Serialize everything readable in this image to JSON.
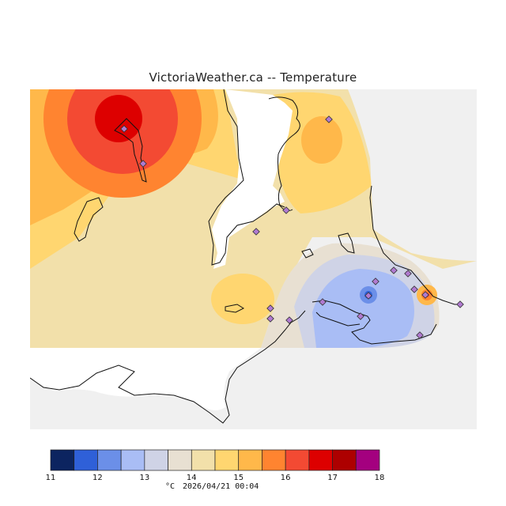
{
  "title": "VictoriaWeather.ca -- Temperature",
  "colors": {
    "land_background": "#f0f0f0",
    "water": "#ffffff",
    "coast": "#111111",
    "station_fill": "#b07ad0",
    "station_stroke": "#333333"
  },
  "legend": {
    "unit": "°C",
    "timestamp": "2026/04/21 00:04",
    "ticks": [
      "11",
      "12",
      "13",
      "14",
      "15",
      "16",
      "17",
      "18"
    ],
    "bins": [
      {
        "color": "#0c2460"
      },
      {
        "color": "#2f60d8"
      },
      {
        "color": "#6b8fe8"
      },
      {
        "color": "#a9bdf5"
      },
      {
        "color": "#cfd3e6"
      },
      {
        "color": "#e8e0d2"
      },
      {
        "color": "#f2e0aa"
      },
      {
        "color": "#ffd670"
      },
      {
        "color": "#ffb84a"
      },
      {
        "color": "#ff8430"
      },
      {
        "color": "#f34a33"
      },
      {
        "color": "#dd0000"
      },
      {
        "color": "#ad0000"
      },
      {
        "color": "#a4007f"
      }
    ]
  }
}
